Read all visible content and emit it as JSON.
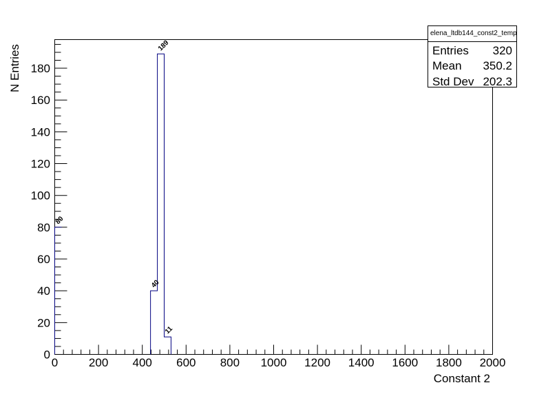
{
  "chart_data": {
    "type": "histogram",
    "title": "",
    "xlabel": "Constant 2",
    "ylabel": "N Entries",
    "xlim": [
      0,
      2000
    ],
    "ylim": [
      0,
      198
    ],
    "bin_width": 31.25,
    "x_ticks": [
      "0",
      "200",
      "400",
      "600",
      "800",
      "1000",
      "1200",
      "1400",
      "1600",
      "1800",
      "2000"
    ],
    "y_ticks": [
      "0",
      "20",
      "40",
      "60",
      "80",
      "100",
      "120",
      "140",
      "160",
      "180"
    ],
    "bins": [
      {
        "x_low": 0,
        "x_high": 31.25,
        "value": 80,
        "label": "80"
      },
      {
        "x_low": 437.5,
        "x_high": 468.75,
        "value": 40,
        "label": "40"
      },
      {
        "x_low": 468.75,
        "x_high": 500,
        "value": 189,
        "label": "189"
      },
      {
        "x_low": 500,
        "x_high": 531.25,
        "value": 11,
        "label": "11"
      }
    ],
    "line_color": "#000080",
    "grid": false
  },
  "stats": {
    "name": "elena_ltdb144_const2_temp",
    "rows": [
      {
        "label": "Entries",
        "value": "320"
      },
      {
        "label": "Mean",
        "value": "350.2"
      },
      {
        "label": "Std Dev",
        "value": "202.3"
      }
    ]
  }
}
